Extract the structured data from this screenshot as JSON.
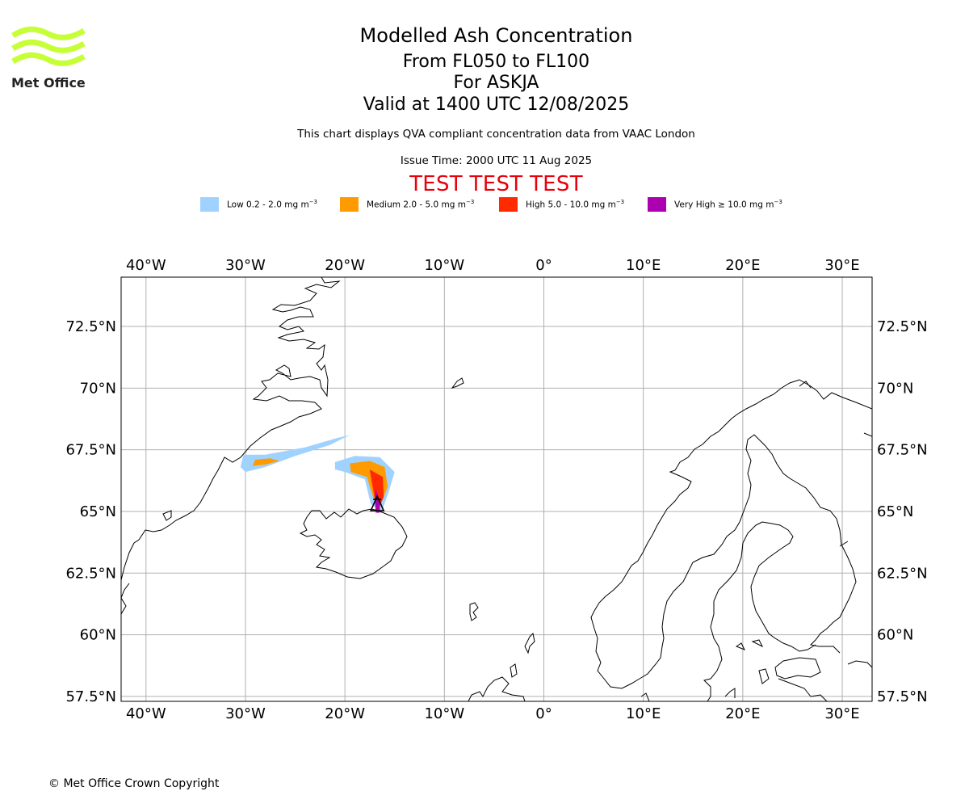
{
  "header": {
    "title": "Modelled Ash Concentration",
    "levels": "From FL050 to FL100",
    "volcano": "For ASKJA",
    "valid": "Valid at 1400 UTC 12/08/2025",
    "description": "This chart displays QVA compliant concentration data from VAAC London",
    "issue_time": "Issue Time: 2000 UTC 11 Aug 2025",
    "test_banner": "TEST TEST TEST"
  },
  "logo": {
    "text": "Met Office",
    "color": "#c6ff38"
  },
  "legend": [
    {
      "label": "Low 0.2 - 2.0 mg m",
      "exp": "−3",
      "color": "#a0d2ff"
    },
    {
      "label": "Medium 2.0 - 5.0 mg m",
      "exp": "−3",
      "color": "#ff9a00"
    },
    {
      "label": "High 5.0 - 10.0 mg m",
      "exp": "−3",
      "color": "#ff2a00"
    },
    {
      "label": "Very High  ≥  10.0 mg m",
      "exp": "−3",
      "color": "#ad00b0"
    }
  ],
  "map": {
    "projection": "PlateCarree",
    "lon_range": [
      -42.5,
      33
    ],
    "lat_range": [
      57.3,
      74.5
    ],
    "lon_ticks": [
      {
        "value": -40,
        "label": "40°W"
      },
      {
        "value": -30,
        "label": "30°W"
      },
      {
        "value": -20,
        "label": "20°W"
      },
      {
        "value": -10,
        "label": "10°W"
      },
      {
        "value": 0,
        "label": "0°"
      },
      {
        "value": 10,
        "label": "10°E"
      },
      {
        "value": 20,
        "label": "20°E"
      },
      {
        "value": 30,
        "label": "30°E"
      }
    ],
    "lat_ticks": [
      {
        "value": 72.5,
        "label": "72.5°N"
      },
      {
        "value": 70,
        "label": "70°N"
      },
      {
        "value": 67.5,
        "label": "67.5°N"
      },
      {
        "value": 65,
        "label": "65°N"
      },
      {
        "value": 62.5,
        "label": "62.5°N"
      },
      {
        "value": 60,
        "label": "60°N"
      },
      {
        "value": 57.5,
        "label": "57.5°N"
      }
    ],
    "grid": true,
    "volcano_marker": {
      "name": "ASKJA",
      "lon": -16.75,
      "lat": 65.03
    },
    "ash_areas": [
      {
        "level": "Low",
        "color": "#a0d2ff",
        "polygon": [
          [
            -28,
            67.3
          ],
          [
            -24,
            67.6
          ],
          [
            -21,
            67.95
          ],
          [
            -19.5,
            68.1
          ],
          [
            -21.5,
            67.7
          ],
          [
            -25,
            67.25
          ],
          [
            -28,
            66.8
          ],
          [
            -30,
            66.6
          ],
          [
            -30.5,
            66.8
          ],
          [
            -30.2,
            67.3
          ]
        ]
      },
      {
        "level": "Low",
        "color": "#a0d2ff",
        "polygon": [
          [
            -21,
            67.0
          ],
          [
            -19,
            67.25
          ],
          [
            -16.5,
            67.2
          ],
          [
            -15,
            66.6
          ],
          [
            -15.6,
            65.8
          ],
          [
            -16.3,
            65.0
          ],
          [
            -17.4,
            65.3
          ],
          [
            -18,
            66.3
          ],
          [
            -20,
            66.6
          ],
          [
            -21,
            66.7
          ]
        ]
      },
      {
        "level": "Medium",
        "color": "#ff9a00",
        "polygon": [
          [
            -29,
            67.1
          ],
          [
            -27.5,
            67.15
          ],
          [
            -26.6,
            67.05
          ],
          [
            -28,
            66.9
          ],
          [
            -29.3,
            66.85
          ]
        ]
      },
      {
        "level": "Medium",
        "color": "#ff9a00",
        "polygon": [
          [
            -19.5,
            66.95
          ],
          [
            -17.5,
            67.05
          ],
          [
            -16,
            66.8
          ],
          [
            -15.7,
            66.0
          ],
          [
            -16.4,
            65.3
          ],
          [
            -17.1,
            65.5
          ],
          [
            -17.8,
            66.4
          ],
          [
            -19.4,
            66.6
          ]
        ]
      },
      {
        "level": "High",
        "color": "#ff2a00",
        "polygon": [
          [
            -17.5,
            66.7
          ],
          [
            -16.2,
            66.4
          ],
          [
            -16.1,
            65.6
          ],
          [
            -16.6,
            65.1
          ],
          [
            -17.0,
            65.5
          ],
          [
            -17.3,
            66.2
          ]
        ]
      },
      {
        "level": "Very High",
        "color": "#ad00b0",
        "polygon": [
          [
            -16.9,
            65.9
          ],
          [
            -16.5,
            65.4
          ],
          [
            -16.5,
            64.95
          ],
          [
            -16.9,
            64.95
          ],
          [
            -17.0,
            65.5
          ]
        ]
      }
    ]
  },
  "copyright": "© Met Office Crown Copyright"
}
